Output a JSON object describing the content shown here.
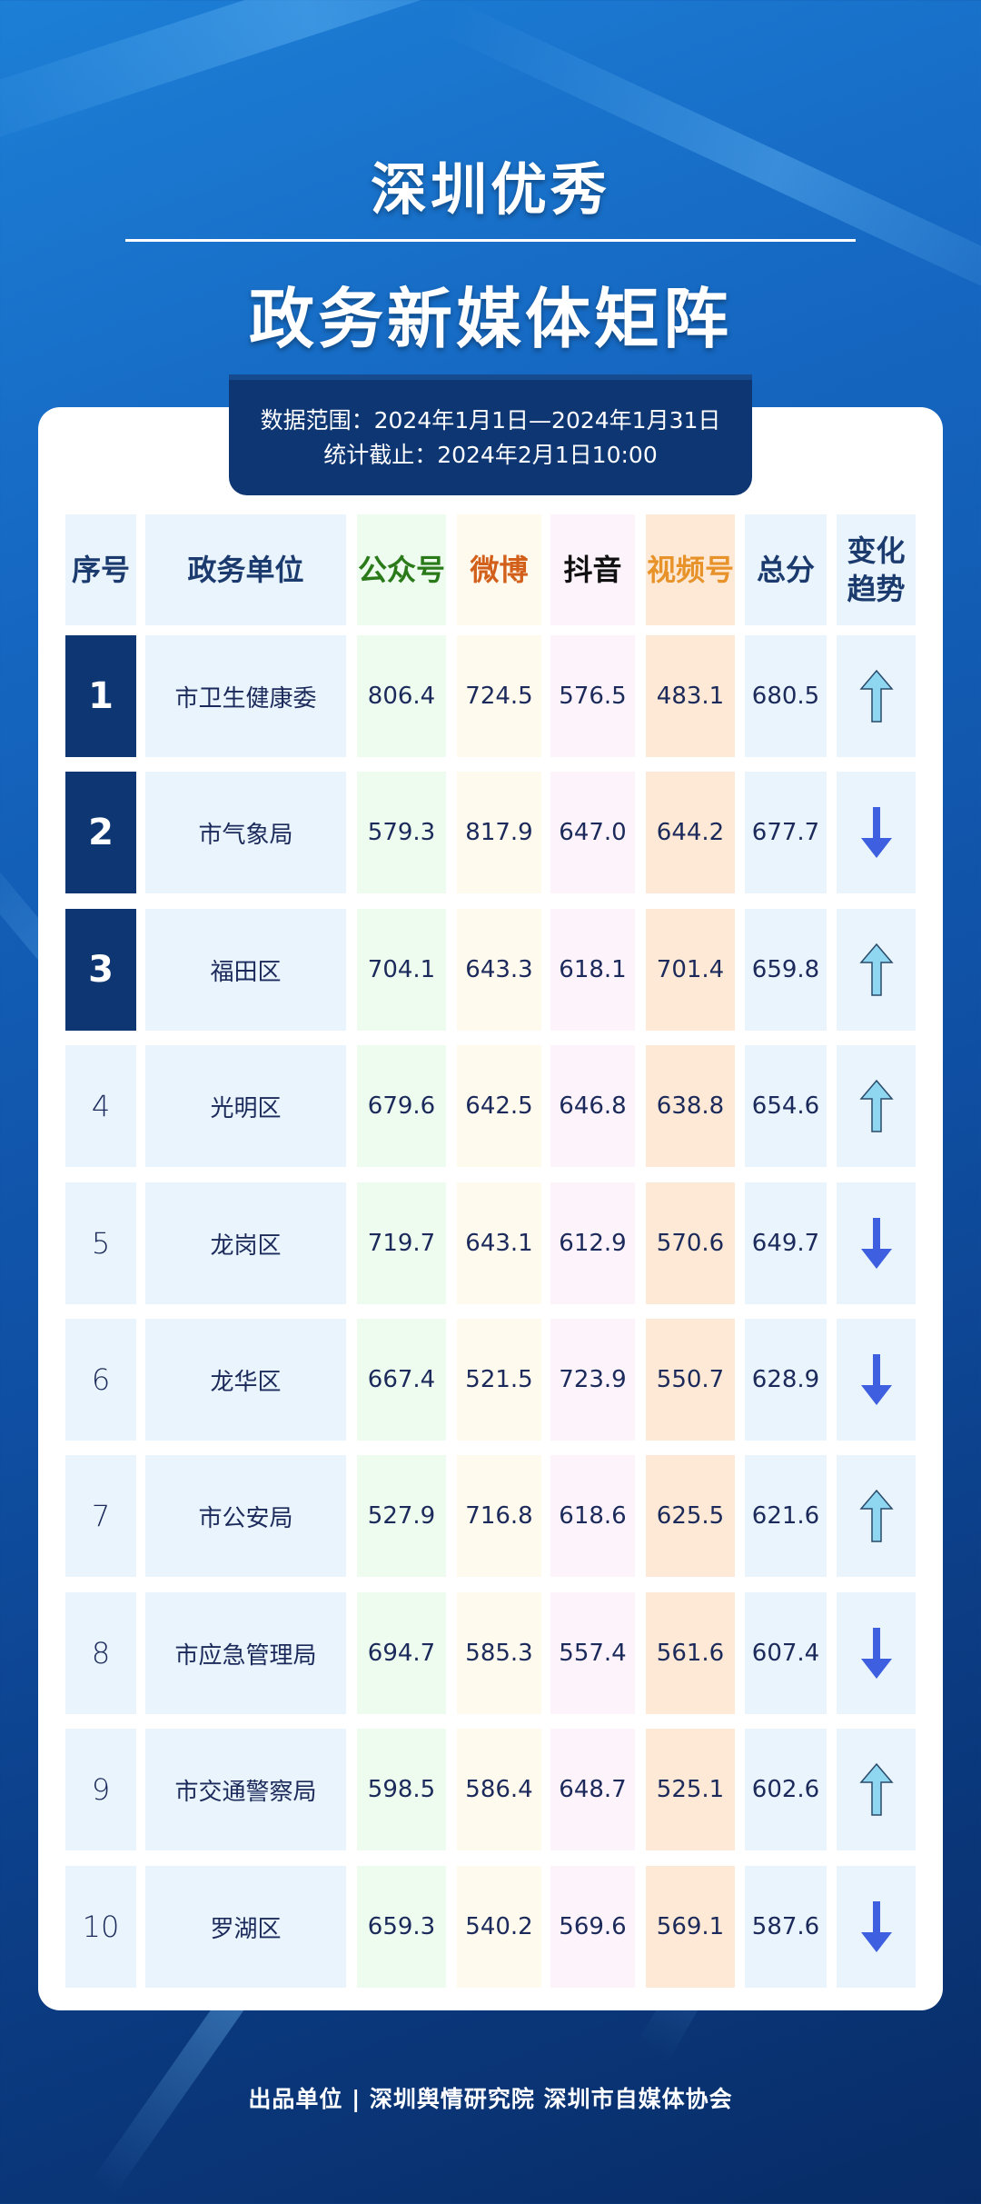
{
  "title_line1": "深圳优秀",
  "title_line2": "政务新媒体矩阵",
  "data_range": "数据范围：2024年1月1日—2024年1月31日",
  "cutoff": "统计截止：2024年2月1日10:00",
  "colors": {
    "navy": "#0d3673",
    "gzh": "#2a7a1a",
    "weibo": "#d2601a",
    "douyin": "#111111",
    "shipinhao": "#e8922a",
    "up_arrow": "#8fd6f0",
    "down_arrow": "#3d5fe0"
  },
  "headers": [
    "序号",
    "政务单位",
    "公众号",
    "微博",
    "抖音",
    "视频号",
    "总分",
    "变化趋势"
  ],
  "rows": [
    {
      "rank": "1",
      "unit": "市卫生健康委",
      "gzh": "806.4",
      "weibo": "724.5",
      "douyin": "576.5",
      "shipinhao": "483.1",
      "total": "680.5",
      "trend": "up"
    },
    {
      "rank": "2",
      "unit": "市气象局",
      "gzh": "579.3",
      "weibo": "817.9",
      "douyin": "647.0",
      "shipinhao": "644.2",
      "total": "677.7",
      "trend": "down"
    },
    {
      "rank": "3",
      "unit": "福田区",
      "gzh": "704.1",
      "weibo": "643.3",
      "douyin": "618.1",
      "shipinhao": "701.4",
      "total": "659.8",
      "trend": "up"
    },
    {
      "rank": "4",
      "unit": "光明区",
      "gzh": "679.6",
      "weibo": "642.5",
      "douyin": "646.8",
      "shipinhao": "638.8",
      "total": "654.6",
      "trend": "up"
    },
    {
      "rank": "5",
      "unit": "龙岗区",
      "gzh": "719.7",
      "weibo": "643.1",
      "douyin": "612.9",
      "shipinhao": "570.6",
      "total": "649.7",
      "trend": "down"
    },
    {
      "rank": "6",
      "unit": "龙华区",
      "gzh": "667.4",
      "weibo": "521.5",
      "douyin": "723.9",
      "shipinhao": "550.7",
      "total": "628.9",
      "trend": "down"
    },
    {
      "rank": "7",
      "unit": "市公安局",
      "gzh": "527.9",
      "weibo": "716.8",
      "douyin": "618.6",
      "shipinhao": "625.5",
      "total": "621.6",
      "trend": "up"
    },
    {
      "rank": "8",
      "unit": "市应急管理局",
      "gzh": "694.7",
      "weibo": "585.3",
      "douyin": "557.4",
      "shipinhao": "561.6",
      "total": "607.4",
      "trend": "down"
    },
    {
      "rank": "9",
      "unit": "市交通警察局",
      "gzh": "598.5",
      "weibo": "586.4",
      "douyin": "648.7",
      "shipinhao": "525.1",
      "total": "602.6",
      "trend": "up"
    },
    {
      "rank": "10",
      "unit": "罗湖区",
      "gzh": "659.3",
      "weibo": "540.2",
      "douyin": "569.6",
      "shipinhao": "569.1",
      "total": "587.6",
      "trend": "down"
    }
  ],
  "footer": "出品单位 | 深圳舆情研究院 深圳市自媒体协会"
}
